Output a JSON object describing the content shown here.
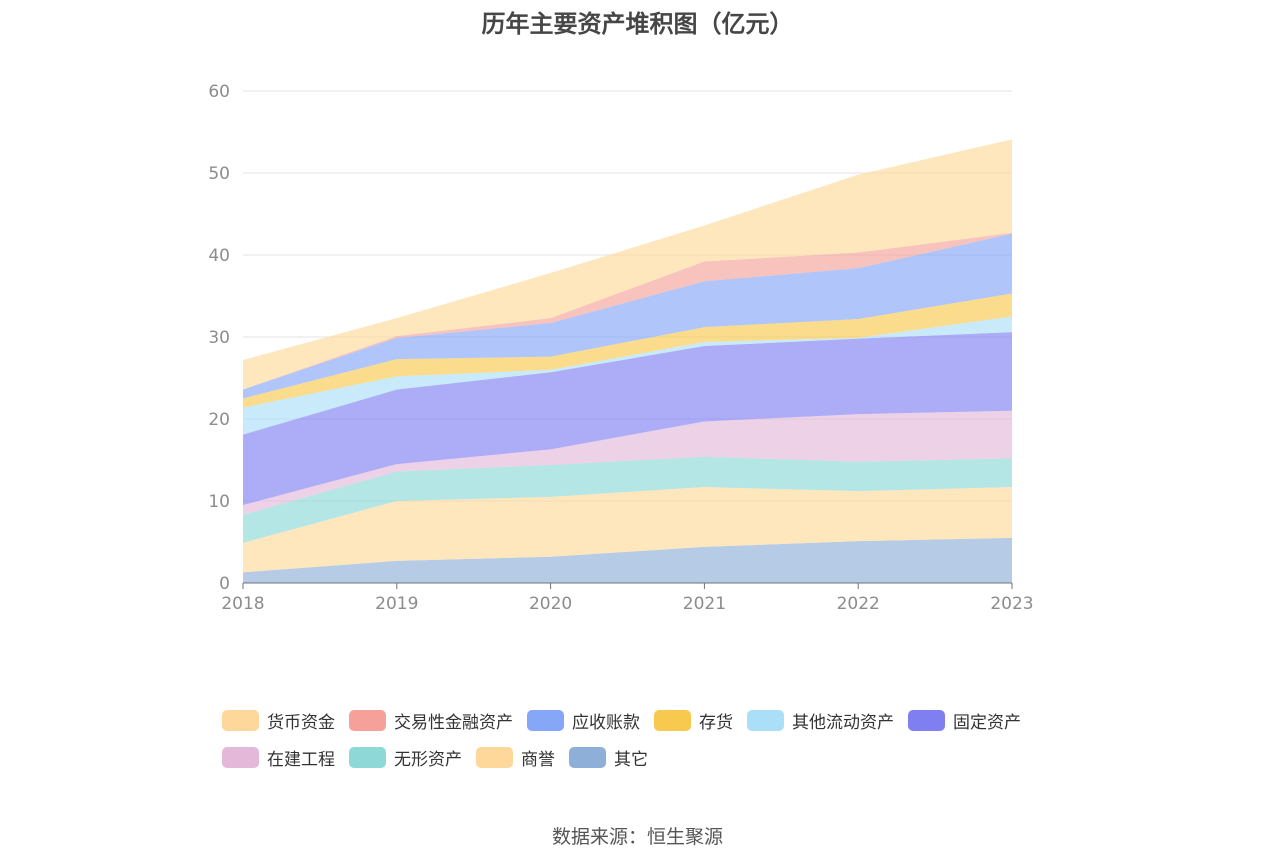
{
  "chart_data": {
    "type": "area",
    "stacked": true,
    "title": "历年主要资产堆积图（亿元）",
    "x": [
      "2018",
      "2019",
      "2020",
      "2021",
      "2022",
      "2023"
    ],
    "ylim": [
      0,
      60
    ],
    "yticks": [
      0,
      10,
      20,
      30,
      40,
      50,
      60
    ],
    "grid": true,
    "legend_position": "bottom",
    "series": [
      {
        "name": "其它",
        "color": "#8eafd8",
        "values": [
          1.3,
          2.7,
          3.2,
          4.4,
          5.1,
          5.5
        ]
      },
      {
        "name": "商誉",
        "color": "#fdd89a",
        "values": [
          3.6,
          7.3,
          7.3,
          7.3,
          6.1,
          6.2
        ]
      },
      {
        "name": "无形资产",
        "color": "#8ed8d8",
        "values": [
          3.4,
          3.6,
          3.9,
          3.7,
          3.6,
          3.5
        ]
      },
      {
        "name": "在建工程",
        "color": "#e4b8d8",
        "values": [
          1.2,
          0.9,
          1.9,
          4.3,
          5.8,
          5.8
        ]
      },
      {
        "name": "固定资产",
        "color": "#7f7ff2",
        "values": [
          8.6,
          9.1,
          9.4,
          9.2,
          9.2,
          9.6
        ]
      },
      {
        "name": "其他流动资产",
        "color": "#aadff7",
        "values": [
          3.3,
          1.6,
          0.3,
          0.5,
          0.1,
          1.9
        ]
      },
      {
        "name": "存货",
        "color": "#f8c94f",
        "values": [
          1.1,
          2.1,
          1.6,
          1.8,
          2.3,
          2.8
        ]
      },
      {
        "name": "应收账款",
        "color": "#86a6f7",
        "values": [
          1.1,
          2.6,
          4.1,
          5.6,
          6.2,
          7.3
        ]
      },
      {
        "name": "交易性金融资产",
        "color": "#f5a19a",
        "values": [
          0.0,
          0.2,
          0.6,
          2.4,
          1.9,
          0.1
        ]
      },
      {
        "name": "货币资金",
        "color": "#fdd89a",
        "values": [
          3.6,
          2.2,
          5.5,
          4.4,
          9.5,
          11.4
        ]
      }
    ],
    "legend_order": [
      "货币资金",
      "交易性金融资产",
      "应收账款",
      "存货",
      "其他流动资产",
      "固定资产",
      "在建工程",
      "无形资产",
      "商誉",
      "其它"
    ]
  },
  "source": "数据来源：恒生聚源"
}
